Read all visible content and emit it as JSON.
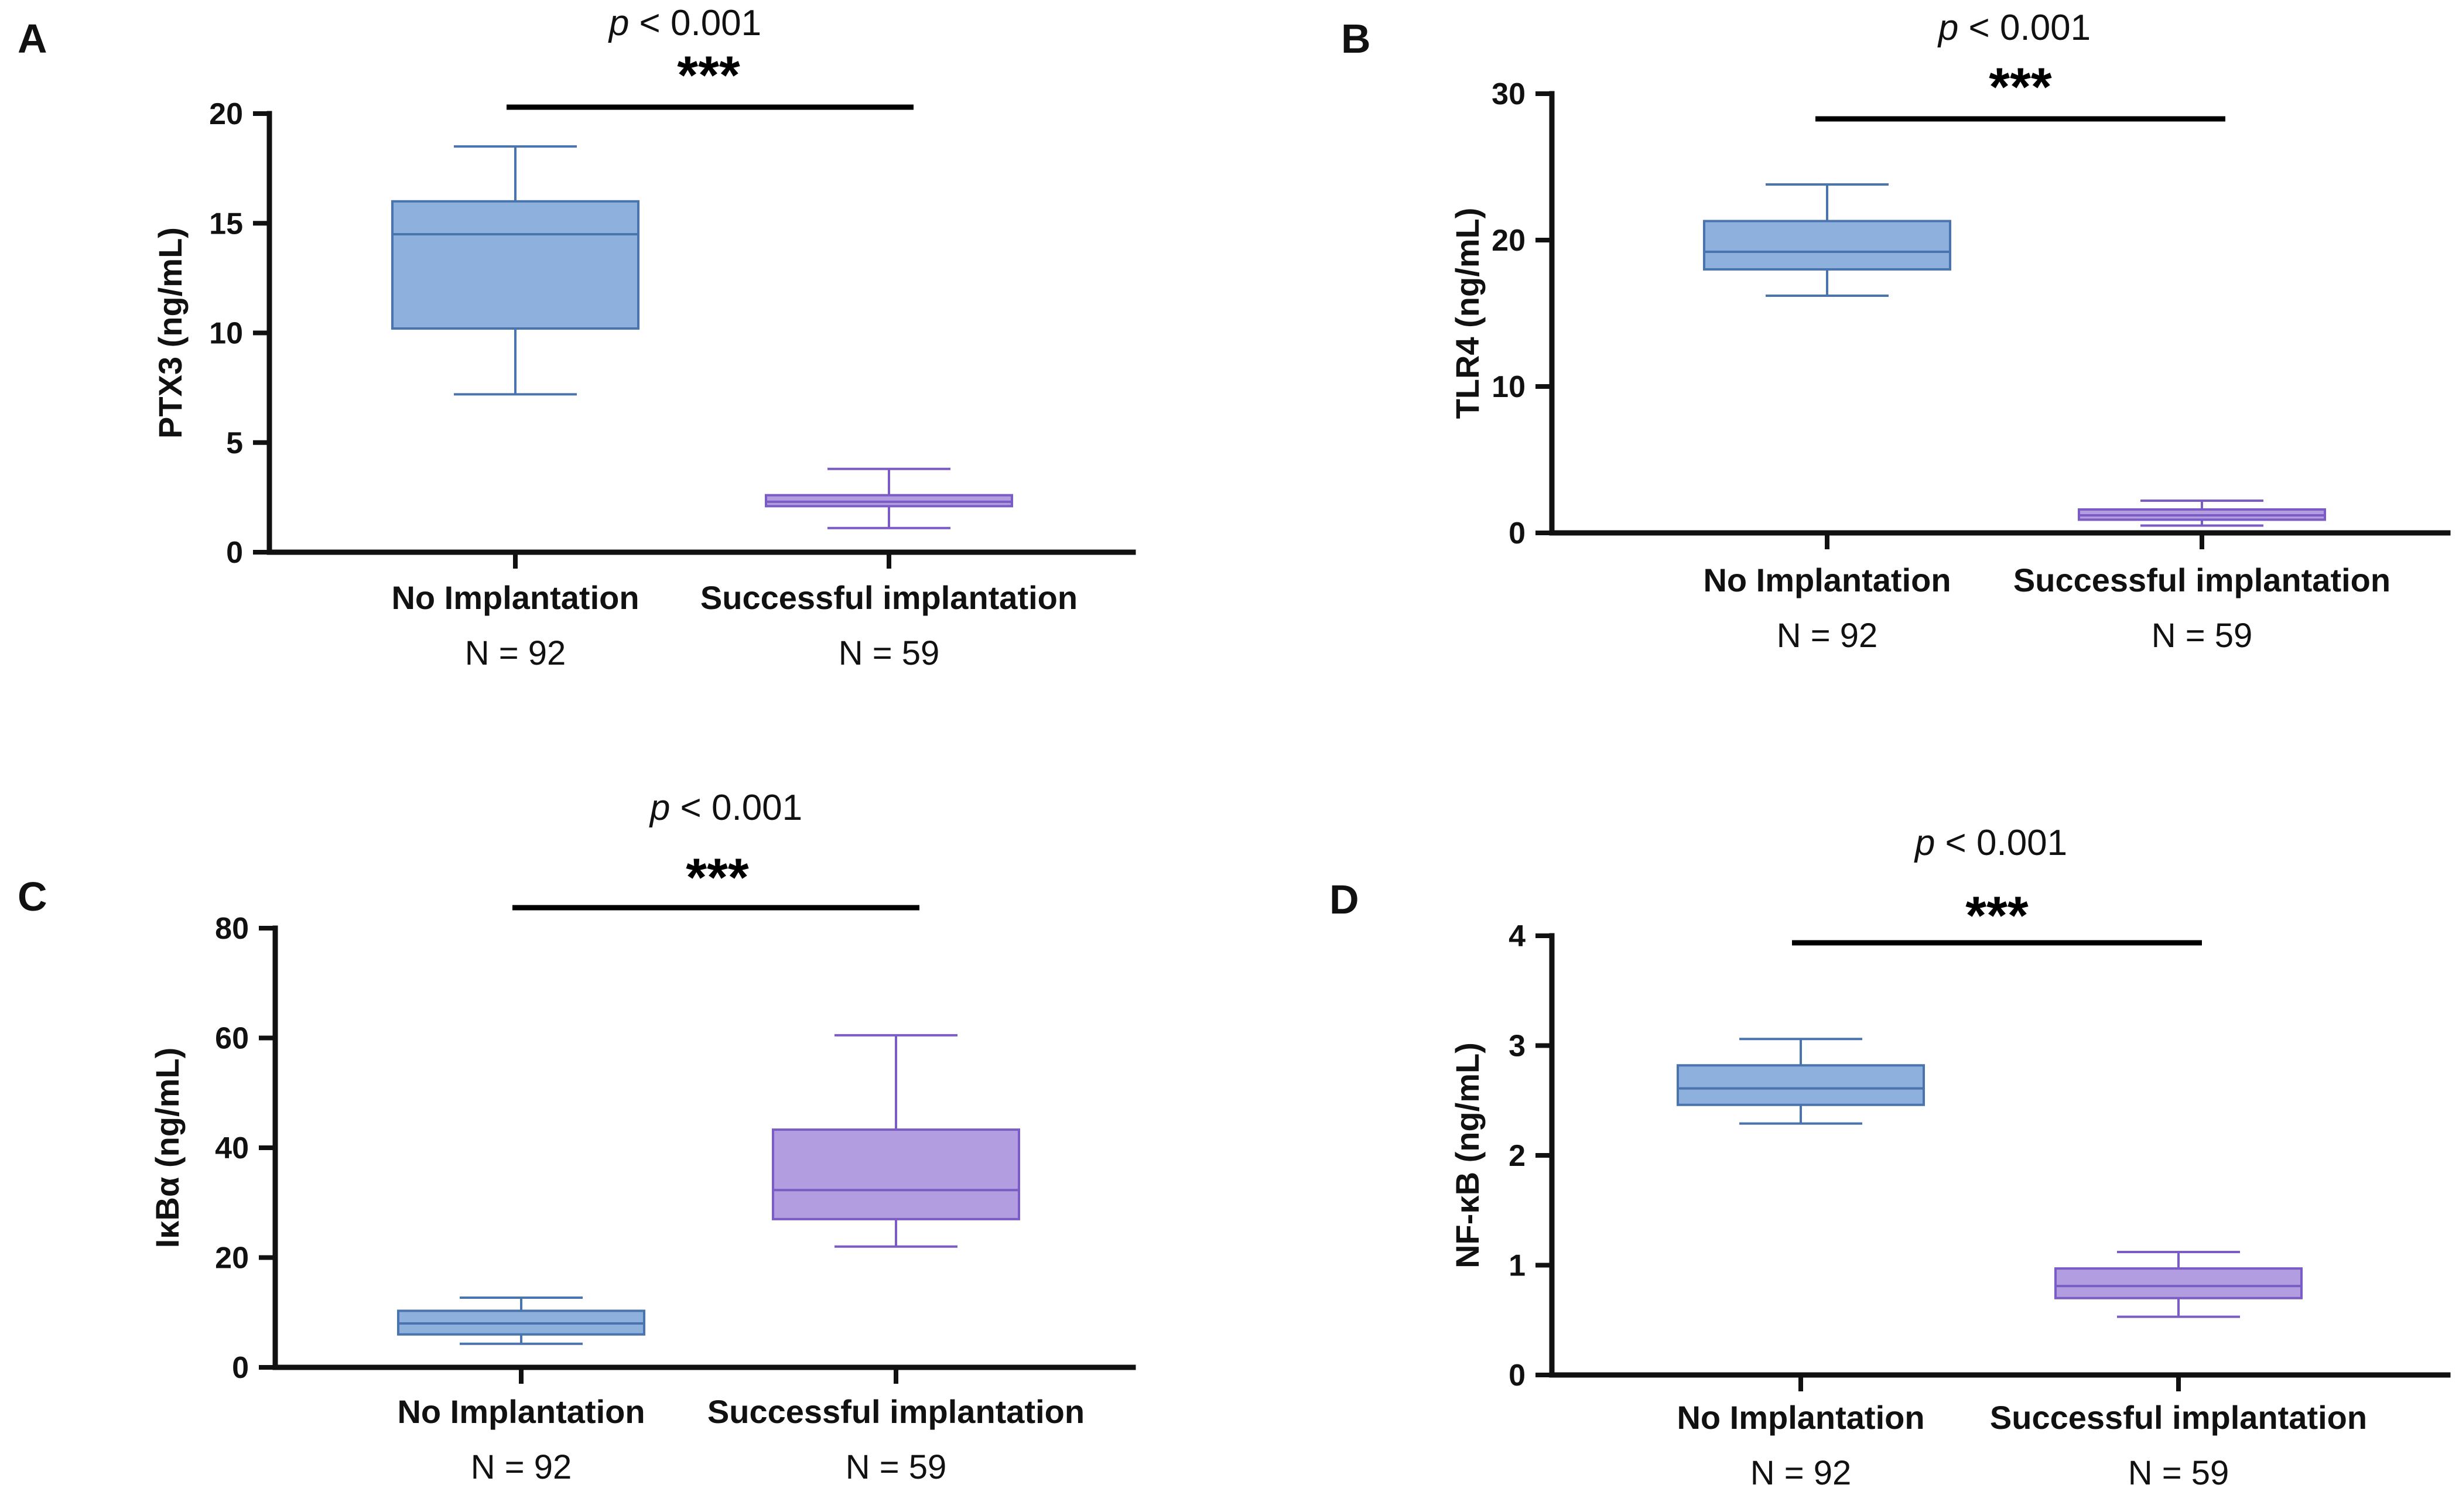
{
  "chart_data": [
    {
      "panel": "A",
      "type": "box",
      "pvalue_prefix": "p",
      "pvalue_suffix": " < 0.001",
      "significance": "***",
      "ylabel": "PTX3 (ng/mL)",
      "ylim": [
        0,
        20
      ],
      "yticks": [
        "0",
        "5",
        "10",
        "15",
        "20"
      ],
      "categories": [
        "No Implantation",
        "Successful implantation"
      ],
      "n_labels": [
        "N = 92",
        "N = 59"
      ],
      "boxes": [
        {
          "group": "No Implantation",
          "min": 7.2,
          "q1": 10.2,
          "median": 14.5,
          "q3": 16.0,
          "max": 18.5
        },
        {
          "group": "Successful implantation",
          "min": 1.1,
          "q1": 2.1,
          "median": 2.3,
          "q3": 2.6,
          "max": 3.8
        }
      ]
    },
    {
      "panel": "B",
      "type": "box",
      "pvalue_prefix": "p",
      "pvalue_suffix": " < 0.001",
      "significance": "***",
      "ylabel": "TLR4 (ng/mL)",
      "ylim": [
        0,
        30
      ],
      "yticks": [
        "0",
        "10",
        "20",
        "30"
      ],
      "categories": [
        "No Implantation",
        "Successful implantation"
      ],
      "n_labels": [
        "N = 92",
        "N = 59"
      ],
      "boxes": [
        {
          "group": "No Implantation",
          "min": 16.2,
          "q1": 18.0,
          "median": 19.2,
          "q3": 21.3,
          "max": 23.8
        },
        {
          "group": "Successful implantation",
          "min": 0.5,
          "q1": 0.9,
          "median": 1.2,
          "q3": 1.6,
          "max": 2.2
        }
      ]
    },
    {
      "panel": "C",
      "type": "box",
      "pvalue_prefix": "p",
      "pvalue_suffix": " < 0.001",
      "significance": "***",
      "ylabel": "IκBα (ng/mL)",
      "ylim": [
        0,
        80
      ],
      "yticks": [
        "0",
        "20",
        "40",
        "60",
        "80"
      ],
      "categories": [
        "No Implantation",
        "Successful implantation"
      ],
      "n_labels": [
        "N = 92",
        "N = 59"
      ],
      "boxes": [
        {
          "group": "No Implantation",
          "min": 4.3,
          "q1": 6.0,
          "median": 8.0,
          "q3": 10.3,
          "max": 12.7
        },
        {
          "group": "Successful implantation",
          "min": 22.0,
          "q1": 27.0,
          "median": 32.3,
          "q3": 43.3,
          "max": 60.5
        }
      ]
    },
    {
      "panel": "D",
      "type": "box",
      "pvalue_prefix": "p",
      "pvalue_suffix": " < 0.001",
      "significance": "***",
      "ylabel": "NF-κB (ng/mL)",
      "ylim": [
        0,
        4
      ],
      "yticks": [
        "0",
        "1",
        "2",
        "3",
        "4"
      ],
      "categories": [
        "No Implantation",
        "Successful implantation"
      ],
      "n_labels": [
        "N = 92",
        "N = 59"
      ],
      "boxes": [
        {
          "group": "No Implantation",
          "min": 2.29,
          "q1": 2.46,
          "median": 2.61,
          "q3": 2.82,
          "max": 3.06
        },
        {
          "group": "Successful implantation",
          "min": 0.53,
          "q1": 0.7,
          "median": 0.81,
          "q3": 0.97,
          "max": 1.12
        }
      ]
    }
  ],
  "colors": {
    "no_implantation_fill": "#8eb0dd",
    "no_implantation_stroke": "#4a74ae",
    "successful_fill": "#b19ddf",
    "successful_stroke": "#7a5cc4",
    "axis": "#111111"
  }
}
